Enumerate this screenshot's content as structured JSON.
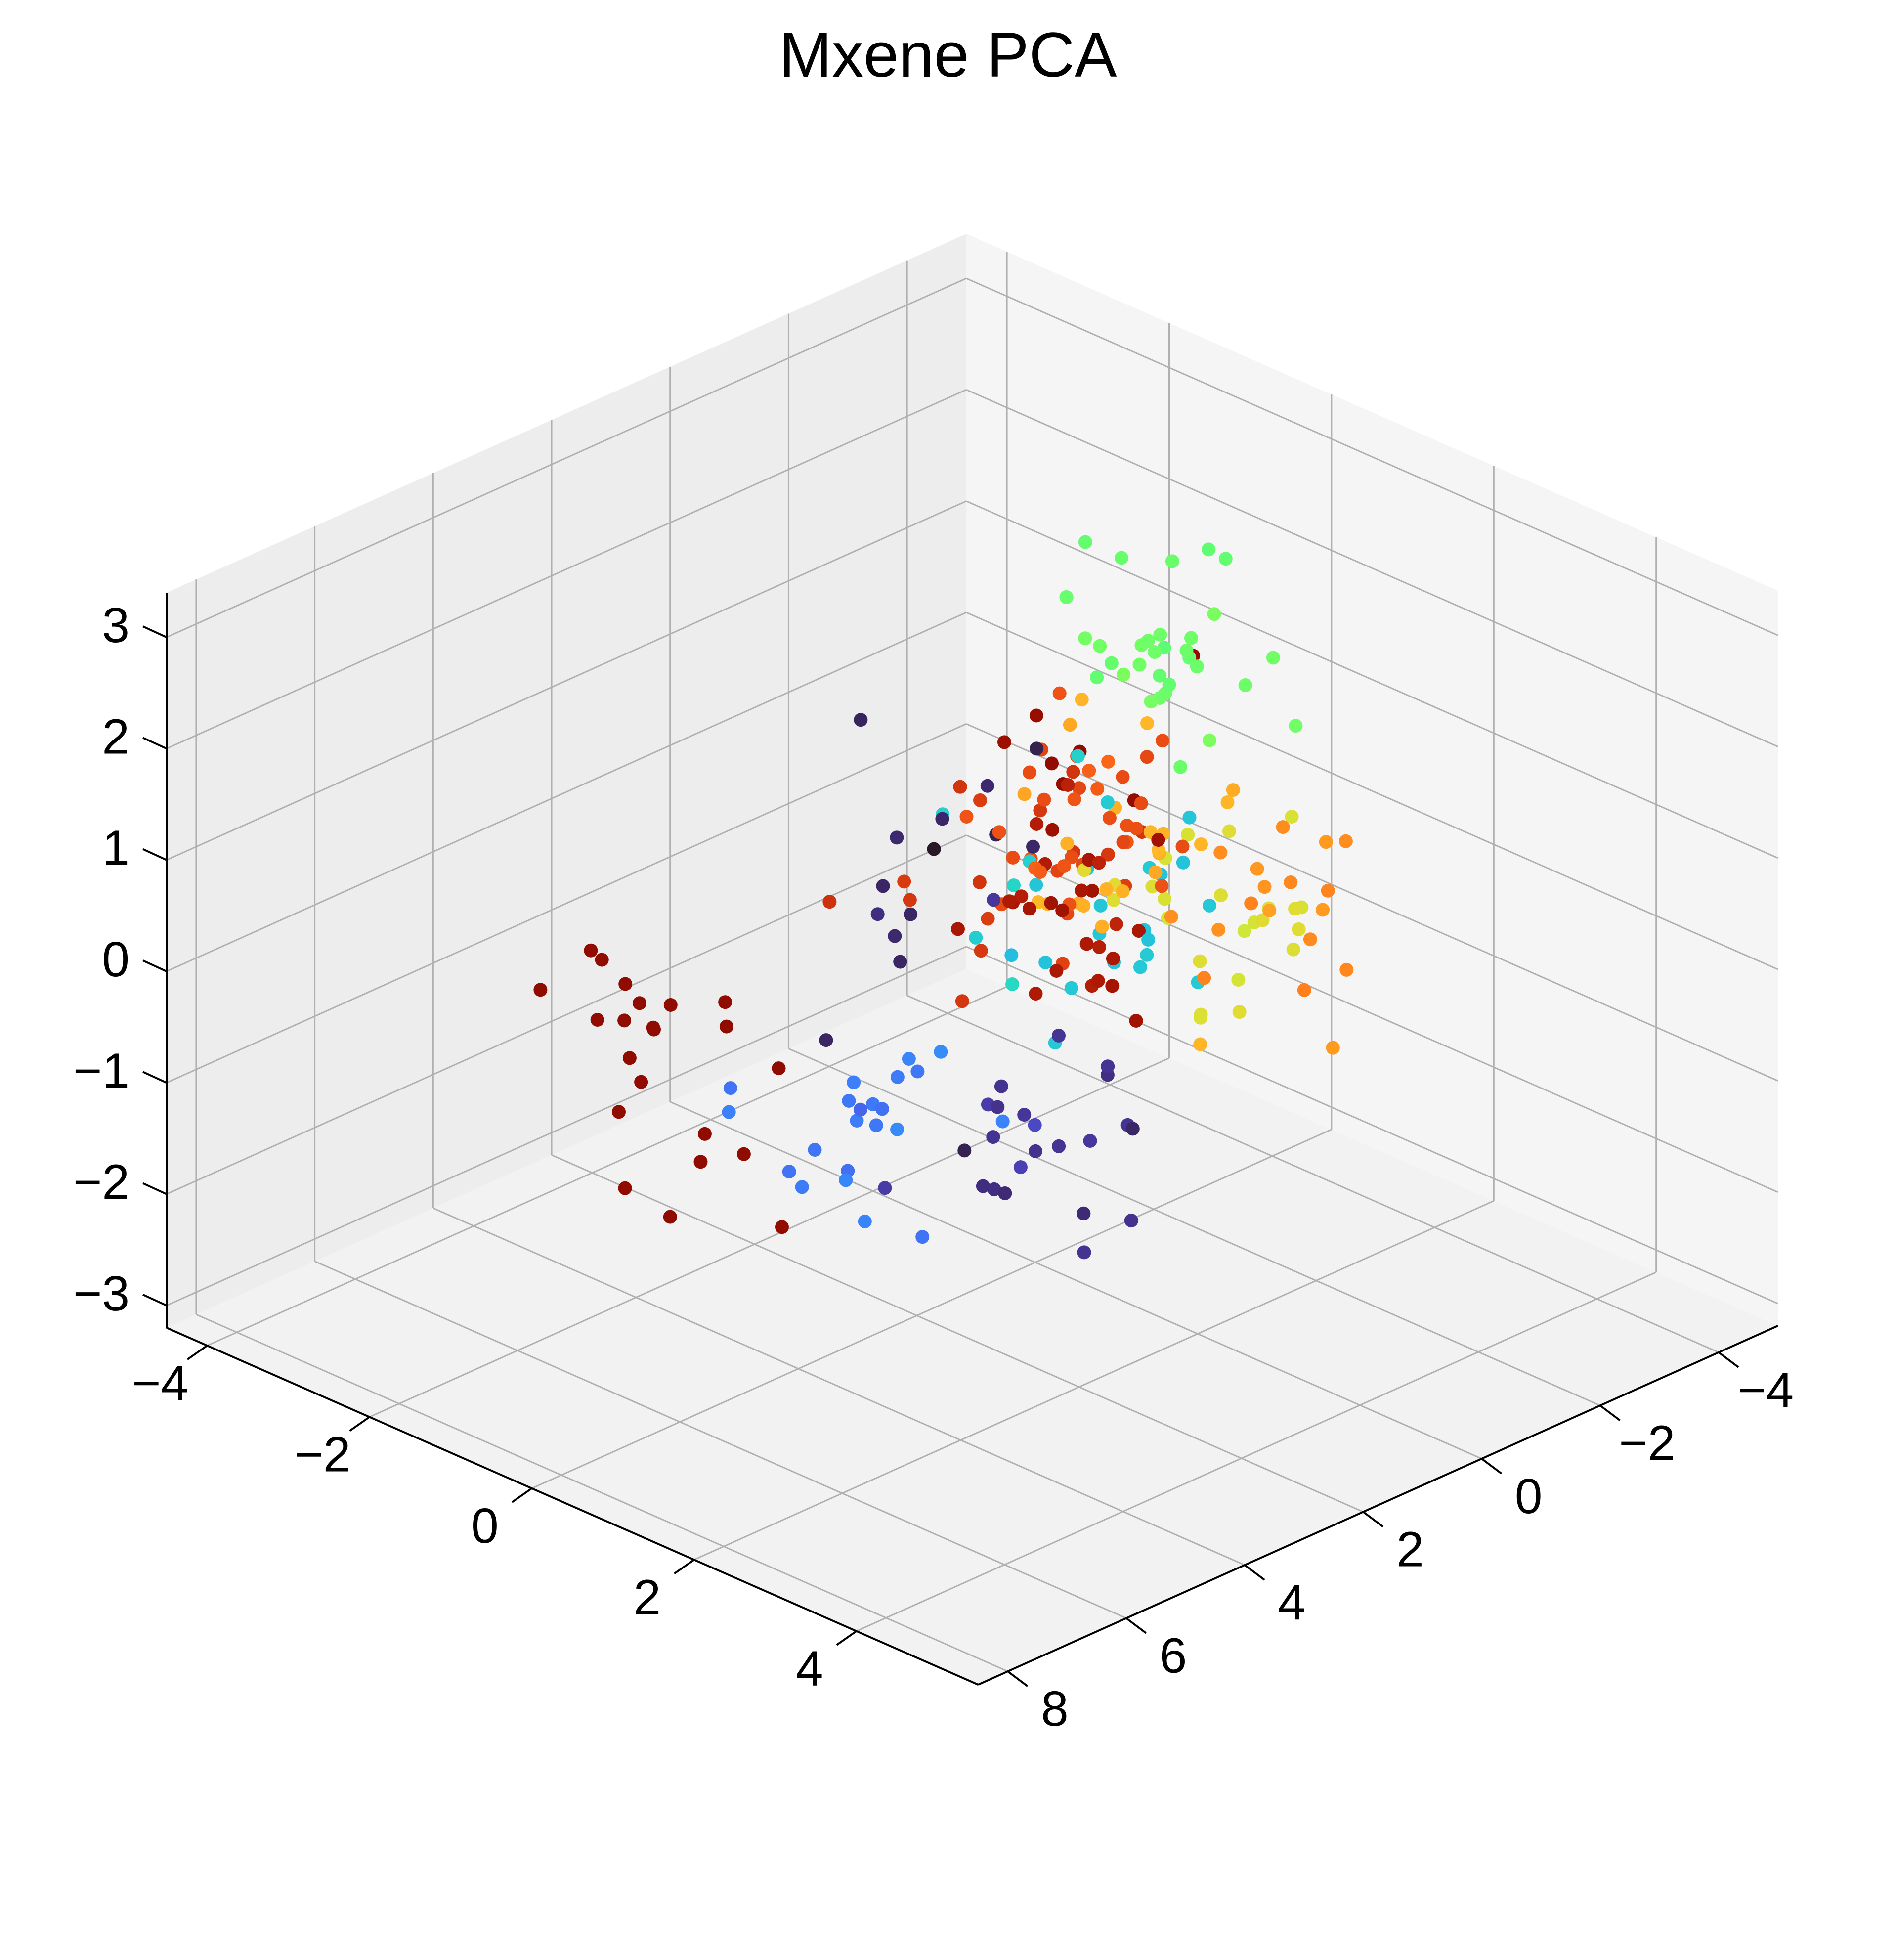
{
  "chart_data": {
    "type": "scatter",
    "projection": "3d",
    "title": "Mxene PCA",
    "xlabel": "",
    "ylabel": "",
    "zlabel": "",
    "grid": true,
    "xlim": [
      -5,
      8.5
    ],
    "ylim": [
      -4.5,
      5.5
    ],
    "zlim": [
      -3.2,
      3.4
    ],
    "xticks": [
      "−4",
      "−2",
      "0",
      "2",
      "4",
      "6",
      "8"
    ],
    "yticks": [
      "−4",
      "−2",
      "0",
      "2",
      "4"
    ],
    "zticks": [
      "−3",
      "−2",
      "−1",
      "0",
      "1",
      "2",
      "3"
    ],
    "xtick_values": [
      -4,
      -2,
      0,
      2,
      4,
      6,
      8
    ],
    "ytick_values": [
      -4,
      -2,
      0,
      2,
      4
    ],
    "ztick_values": [
      -3,
      -2,
      -1,
      0,
      1,
      2,
      3
    ],
    "colormap": "turbo",
    "pane_color": "#f2f2f2",
    "grid_color": "#b0b0b0",
    "seed": 7
  }
}
